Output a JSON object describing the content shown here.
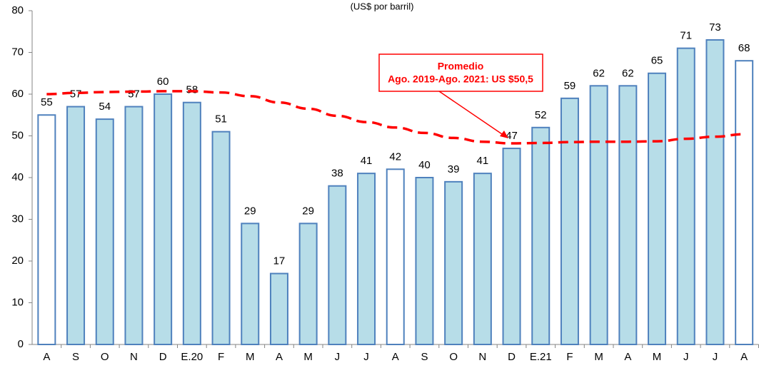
{
  "chart_data": {
    "type": "bar",
    "title": "(US$ por barril)",
    "categories": [
      "A",
      "S",
      "O",
      "N",
      "D",
      "E.20",
      "F",
      "M",
      "A",
      "M",
      "J",
      "J",
      "A",
      "S",
      "O",
      "N",
      "D",
      "E.21",
      "F",
      "M",
      "A",
      "M",
      "J",
      "J",
      "A"
    ],
    "values": [
      55,
      57,
      54,
      57,
      60,
      58,
      51,
      29,
      17,
      29,
      38,
      41,
      42,
      40,
      39,
      41,
      47,
      52,
      59,
      62,
      62,
      65,
      71,
      73,
      68
    ],
    "colors": [
      "#ffffff",
      "#b7dde8",
      "#b7dde8",
      "#b7dde8",
      "#b7dde8",
      "#b7dde8",
      "#b7dde8",
      "#b7dde8",
      "#b7dde8",
      "#b7dde8",
      "#b7dde8",
      "#b7dde8",
      "#ffffff",
      "#b7dde8",
      "#b7dde8",
      "#b7dde8",
      "#b7dde8",
      "#b7dde8",
      "#b7dde8",
      "#b7dde8",
      "#b7dde8",
      "#b7dde8",
      "#b7dde8",
      "#b7dde8",
      "#ffffff"
    ],
    "stroke": "#4f81bd",
    "trend": {
      "color": "#ff0000",
      "values": [
        60,
        60.3,
        60.5,
        60.6,
        60.7,
        60.7,
        60.4,
        59.5,
        58,
        56.5,
        54.8,
        53.3,
        52,
        50.7,
        49.5,
        48.6,
        48.2,
        48.3,
        48.5,
        48.6,
        48.6,
        48.7,
        49.3,
        49.8,
        50.4
      ]
    },
    "annotation": {
      "lines": [
        "Promedio",
        "Ago. 2019-Ago. 2021: US $50,5"
      ],
      "color": "#ff0000"
    },
    "ylim": [
      0,
      80
    ],
    "yticks": [
      0,
      10,
      20,
      30,
      40,
      50,
      60,
      70,
      80
    ]
  }
}
